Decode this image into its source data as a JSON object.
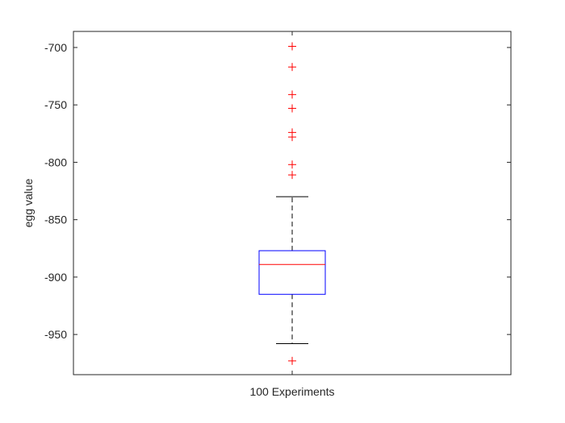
{
  "chart_data": {
    "type": "boxplot",
    "title": "",
    "xlabel": "",
    "ylabel": "egg value",
    "categories": [
      "100 Experiments"
    ],
    "ylim": [
      -985,
      -686
    ],
    "yticks": [
      -700,
      -750,
      -800,
      -850,
      -900,
      -950
    ],
    "ytick_labels": [
      "-700",
      "-750",
      "-800",
      "-850",
      "-900",
      "-950"
    ],
    "grid": false,
    "legend": "none",
    "boxes": [
      {
        "category": "100 Experiments",
        "whisker_low": -958,
        "q1": -915,
        "median": -889,
        "q3": -877,
        "whisker_high": -830,
        "outliers": [
          -699,
          -717,
          -741,
          -753,
          -774,
          -778,
          -802,
          -811,
          -973
        ]
      }
    ],
    "colors": {
      "box": "#0000ff",
      "median": "#ff0000",
      "whisker": "#000000",
      "outlier": "#ff0000",
      "axes": "#262626"
    }
  }
}
